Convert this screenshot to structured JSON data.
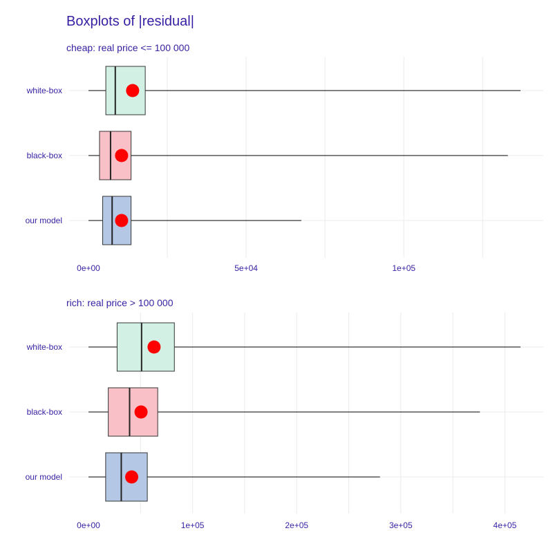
{
  "chart_data": [
    {
      "type": "boxplot",
      "title": "Boxplots of |residual|",
      "subtitle": "cheap: real price <= 100 000",
      "xlim": [
        0,
        137000
      ],
      "x_ticks": [
        {
          "value": 0,
          "label": "0e+00"
        },
        {
          "value": 50000,
          "label": "5e+04"
        },
        {
          "value": 100000,
          "label": "1e+05"
        }
      ],
      "grid_values": [
        25000,
        50000,
        75000,
        100000,
        125000
      ],
      "categories": [
        "white-box",
        "black-box",
        "our model"
      ],
      "series": [
        {
          "name": "white-box",
          "color": "#d2f0e4",
          "min": 0,
          "q1": 5500,
          "median": 8500,
          "q3": 18000,
          "max": 137000,
          "mean": 14000
        },
        {
          "name": "black-box",
          "color": "#f9c0c7",
          "min": 0,
          "q1": 3500,
          "median": 7000,
          "q3": 13500,
          "max": 133000,
          "mean": 10500
        },
        {
          "name": "our model",
          "color": "#b4c8e5",
          "min": 0,
          "q1": 4500,
          "median": 7500,
          "q3": 13500,
          "max": 67500,
          "mean": 10500
        }
      ]
    },
    {
      "type": "boxplot",
      "title": "",
      "subtitle": "rich: real price > 100 000",
      "xlim": [
        0,
        415000
      ],
      "x_ticks": [
        {
          "value": 0,
          "label": "0e+00"
        },
        {
          "value": 100000,
          "label": "1e+05"
        },
        {
          "value": 200000,
          "label": "2e+05"
        },
        {
          "value": 300000,
          "label": "3e+05"
        },
        {
          "value": 400000,
          "label": "4e+05"
        }
      ],
      "grid_values": [
        50000,
        100000,
        150000,
        200000,
        250000,
        300000,
        350000,
        400000
      ],
      "categories": [
        "white-box",
        "black-box",
        "our model"
      ],
      "series": [
        {
          "name": "white-box",
          "color": "#d2f0e4",
          "min": 0,
          "q1": 27500,
          "median": 51000,
          "q3": 82500,
          "max": 415000,
          "mean": 63000
        },
        {
          "name": "black-box",
          "color": "#f9c0c7",
          "min": 0,
          "q1": 19000,
          "median": 39500,
          "q3": 66500,
          "max": 376000,
          "mean": 50500
        },
        {
          "name": "our model",
          "color": "#b4c8e5",
          "min": 0,
          "q1": 16500,
          "median": 31500,
          "q3": 56500,
          "max": 280000,
          "mean": 41500
        }
      ]
    }
  ]
}
